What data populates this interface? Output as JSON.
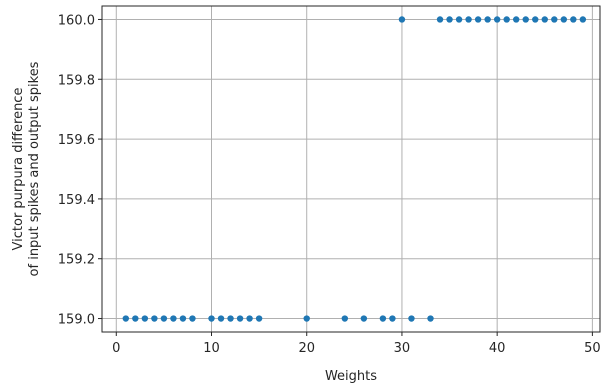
{
  "chart_data": {
    "type": "scatter",
    "title": "",
    "xlabel": "Weights",
    "ylabel_lines": [
      "Victor purpura difference",
      "of input spikes and output spikes"
    ],
    "xlim": [
      -1.5,
      50.8
    ],
    "ylim": [
      158.955,
      160.045
    ],
    "xticks": [
      0,
      10,
      20,
      30,
      40,
      50
    ],
    "yticks": [
      159.0,
      159.2,
      159.4,
      159.6,
      159.8,
      160.0
    ],
    "ytick_labels": [
      "159.0",
      "159.2",
      "159.4",
      "159.6",
      "159.8",
      "160.0"
    ],
    "grid": true,
    "marker_color": "#1f77b4",
    "series": [
      {
        "x": [
          1,
          2,
          3,
          4,
          5,
          6,
          7,
          8,
          10,
          11,
          12,
          13,
          14,
          15,
          20,
          24,
          26,
          28,
          29,
          31,
          33,
          30,
          34,
          35,
          36,
          37,
          38,
          39,
          40,
          41,
          42,
          43,
          44,
          45,
          46,
          47,
          48,
          49
        ],
        "y": [
          159.0,
          159.0,
          159.0,
          159.0,
          159.0,
          159.0,
          159.0,
          159.0,
          159.0,
          159.0,
          159.0,
          159.0,
          159.0,
          159.0,
          159.0,
          159.0,
          159.0,
          159.0,
          159.0,
          159.0,
          159.0,
          160.0,
          160.0,
          160.0,
          160.0,
          160.0,
          160.0,
          160.0,
          160.0,
          160.0,
          160.0,
          160.0,
          160.0,
          160.0,
          160.0,
          160.0,
          160.0,
          160.0
        ]
      }
    ]
  }
}
